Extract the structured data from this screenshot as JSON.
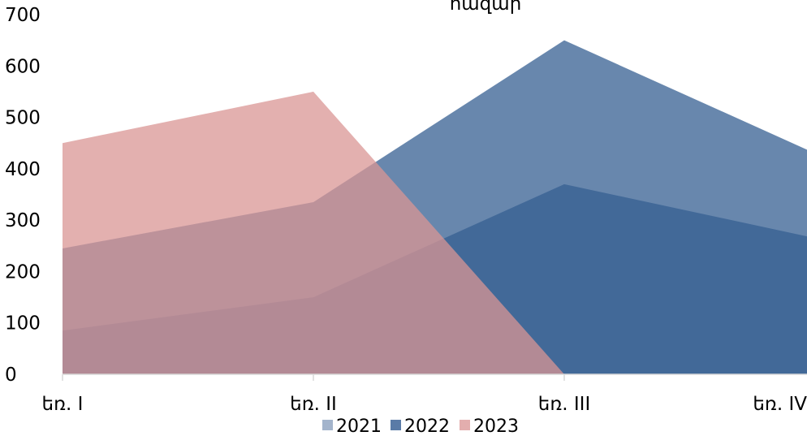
{
  "chart_data": {
    "type": "area",
    "title": "հազար",
    "categories": [
      "եռ. I",
      "եռ. II",
      "եռ. III",
      "եռ. IV"
    ],
    "ylim": [
      0,
      700
    ],
    "yticks": [
      0,
      100,
      200,
      300,
      400,
      500,
      600,
      700
    ],
    "grid": false,
    "legend_position": "bottom",
    "series": [
      {
        "name": "2021",
        "color": "#365f91",
        "opacity": 0.75,
        "values": [
          85,
          150,
          370,
          265
        ]
      },
      {
        "name": "2022",
        "color": "#365f91",
        "opacity": 0.75,
        "values": [
          245,
          335,
          650,
          430
        ]
      },
      {
        "name": "2023",
        "color": "#d99594",
        "opacity": 0.75,
        "values": [
          450,
          550,
          0,
          null
        ]
      }
    ],
    "legend": [
      {
        "label": "2021",
        "color": "#a3b4cc"
      },
      {
        "label": "2022",
        "color": "#5a7ba7"
      },
      {
        "label": "2023",
        "color": "#e3aeae"
      }
    ]
  }
}
